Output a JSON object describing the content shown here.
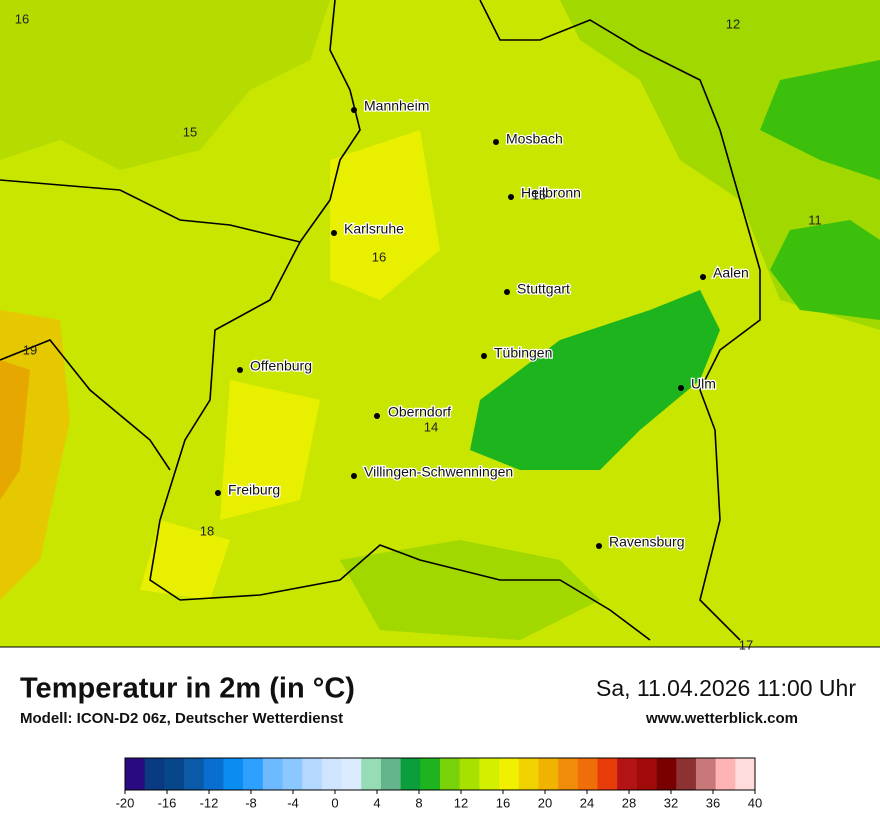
{
  "map": {
    "cities": [
      "Mannheim",
      "Mosbach",
      "Heilbronn",
      "Karlsruhe",
      "Stuttgart",
      "Aalen",
      "Tübingen",
      "Ulm",
      "Offenburg",
      "Oberndorf",
      "Villingen-Schwenningen",
      "Freiburg",
      "Ravensburg"
    ],
    "temperature_labels": [
      16,
      12,
      15,
      15,
      11,
      16,
      19,
      14,
      18,
      17
    ]
  },
  "header": {
    "title": "Temperatur in 2m (in °C)",
    "subtitle": "Modell: ICON-D2 06z, Deutscher Wetterdienst",
    "date": "Sa, 11.04.2026 11:00 Uhr",
    "website": "www.wetterblick.com"
  },
  "legend": {
    "colors": [
      "#2a0a80",
      "#0a3a80",
      "#08468c",
      "#0a5aa8",
      "#0a6ed0",
      "#0a8cf0",
      "#2ea0ff",
      "#6ebaff",
      "#8ac8ff",
      "#b4d8ff",
      "#cfe4ff",
      "#dcecff",
      "#96dcb4",
      "#64b48c",
      "#0a9e3c",
      "#1eb41e",
      "#78d20a",
      "#a8e000",
      "#d2f000",
      "#f0f000",
      "#f0d200",
      "#f0b400",
      "#f08c0a",
      "#f06e0a",
      "#e63c0a",
      "#b41414",
      "#a00a0a",
      "#780000",
      "#8c3232",
      "#c87878",
      "#ffb4b4",
      "#ffdcdc"
    ],
    "ticks": [
      -20,
      -16,
      -12,
      -8,
      -4,
      0,
      4,
      8,
      12,
      16,
      20,
      24,
      28,
      32,
      36,
      40
    ]
  }
}
